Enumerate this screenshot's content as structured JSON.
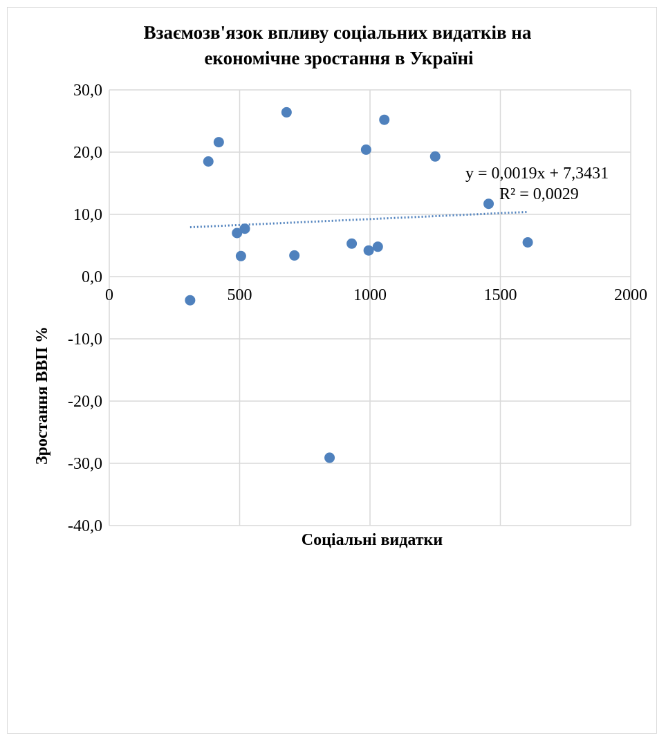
{
  "chart_data": {
    "type": "scatter",
    "title_line1": "Взаємозв'язок впливу соціальних видатків на",
    "title_line2": "економічне зростання в Україні",
    "xlabel": "Соціальні видатки",
    "ylabel": "Зростання ВВП %",
    "xlim": [
      0,
      2000
    ],
    "ylim": [
      -40,
      30
    ],
    "x_ticks": [
      0,
      500,
      1000,
      1500,
      2000
    ],
    "x_tick_labels": [
      "0",
      "500",
      "1000",
      "1500",
      "2000"
    ],
    "y_ticks": [
      30,
      20,
      10,
      0,
      -10,
      -20,
      -30,
      -40
    ],
    "y_tick_labels": [
      "30,0",
      "20,0",
      "10,0",
      "0,0",
      "-10,0",
      "-20,0",
      "-30,0",
      "-40,0"
    ],
    "grid": true,
    "series": [
      {
        "color": "#4f81bd",
        "points": [
          {
            "x": 310,
            "y": -3.8
          },
          {
            "x": 380,
            "y": 18.5
          },
          {
            "x": 420,
            "y": 21.6
          },
          {
            "x": 490,
            "y": 7.0
          },
          {
            "x": 505,
            "y": 3.3
          },
          {
            "x": 520,
            "y": 7.7
          },
          {
            "x": 680,
            "y": 26.4
          },
          {
            "x": 710,
            "y": 3.4
          },
          {
            "x": 845,
            "y": -29.1
          },
          {
            "x": 930,
            "y": 5.3
          },
          {
            "x": 985,
            "y": 20.4
          },
          {
            "x": 995,
            "y": 4.2
          },
          {
            "x": 1030,
            "y": 4.8
          },
          {
            "x": 1055,
            "y": 25.2
          },
          {
            "x": 1250,
            "y": 19.3
          },
          {
            "x": 1455,
            "y": 11.7
          },
          {
            "x": 1605,
            "y": 5.5
          }
        ]
      }
    ],
    "trendline": {
      "type": "linear",
      "slope": 0.0019,
      "intercept": 7.3431,
      "x_range": [
        310,
        1605
      ],
      "style": "dotted",
      "color": "#4f81bd",
      "equation_label": "y = 0,0019x + 7,3431",
      "r2_label": "R² = 0,0029"
    }
  }
}
